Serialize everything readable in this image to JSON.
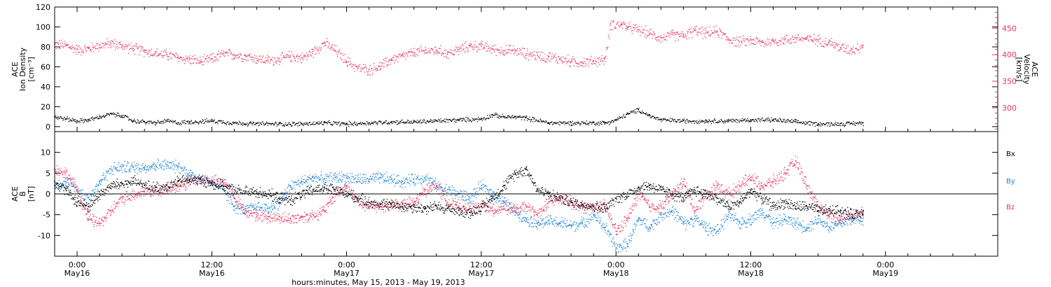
{
  "colors": {
    "black": "#000000",
    "pink": "#e8365d",
    "blue": "#1f86d8"
  },
  "xaxis": {
    "label": "hours:minutes, May 15, 2013 - May 19, 2013",
    "range_hours": [
      -2,
      82
    ],
    "ticks": [
      {
        "hours": 0,
        "time": "0:00",
        "date": "May16"
      },
      {
        "hours": 12,
        "time": "12:00",
        "date": "May16"
      },
      {
        "hours": 24,
        "time": "0:00",
        "date": "May17"
      },
      {
        "hours": 36,
        "time": "12:00",
        "date": "May17"
      },
      {
        "hours": 48,
        "time": "0:00",
        "date": "May18"
      },
      {
        "hours": 60,
        "time": "12:00",
        "date": "May18"
      },
      {
        "hours": 72,
        "time": "0:00",
        "date": "May19"
      }
    ]
  },
  "chart_data": [
    {
      "type": "scatter",
      "panel": "top",
      "ylabel_left": [
        "ACE",
        "Ion Density",
        "[cm⁻³]"
      ],
      "ylabel_right": [
        "ACE",
        "Velocity",
        "[km/s]"
      ],
      "ylim_left": [
        -5,
        120
      ],
      "yticks_left": [
        0,
        20,
        40,
        60,
        80,
        100,
        120
      ],
      "ylim_right": [
        255,
        490
      ],
      "yticks_right": [
        300,
        350,
        400,
        450
      ],
      "series": [
        {
          "axis": "left",
          "color": "#000000",
          "x": [
            -2,
            -1,
            0,
            1,
            2,
            3,
            4,
            5,
            6,
            7,
            8,
            9,
            10,
            12,
            14,
            16,
            18,
            20,
            22,
            24,
            26,
            28,
            30,
            32,
            34,
            36,
            37,
            38,
            39,
            40,
            42,
            44,
            46,
            47,
            48,
            49,
            50,
            51,
            52,
            54,
            56,
            58,
            60,
            62,
            64,
            66,
            68,
            70
          ],
          "y": [
            10,
            8,
            6,
            7,
            10,
            13,
            11,
            6,
            5,
            4,
            6,
            4,
            5,
            6,
            4,
            3,
            3,
            3,
            4,
            3,
            4,
            5,
            5,
            6,
            7,
            8,
            12,
            10,
            10,
            9,
            4,
            4,
            4,
            4,
            7,
            13,
            17,
            11,
            7,
            6,
            6,
            6,
            7,
            7,
            5,
            3,
            3,
            4
          ]
        },
        {
          "axis": "right",
          "color": "#e8365d",
          "x": [
            -2,
            -1,
            0,
            1,
            2,
            3,
            4,
            5,
            6,
            7,
            8,
            9,
            10,
            11,
            12,
            13,
            14,
            15,
            16,
            17,
            18,
            19,
            20,
            21,
            22,
            23,
            24,
            25,
            26,
            27,
            28,
            29,
            30,
            31,
            32,
            33,
            34,
            35,
            36,
            37,
            38,
            39,
            40,
            41,
            42,
            43,
            44,
            45,
            46,
            47,
            47.5,
            48.5,
            49,
            50,
            51,
            52,
            53,
            54,
            55,
            56,
            57,
            58,
            59,
            60,
            61,
            62,
            63,
            64,
            65,
            66,
            67,
            68,
            69,
            70
          ],
          "y": [
            420,
            418,
            410,
            412,
            418,
            422,
            417,
            412,
            408,
            403,
            400,
            395,
            392,
            387,
            393,
            402,
            400,
            398,
            393,
            390,
            392,
            398,
            394,
            406,
            423,
            408,
            388,
            375,
            372,
            378,
            392,
            398,
            404,
            408,
            409,
            403,
            410,
            417,
            416,
            411,
            408,
            408,
            402,
            399,
            396,
            393,
            387,
            386,
            388,
            392,
            458,
            458,
            452,
            447,
            440,
            432,
            438,
            436,
            446,
            441,
            445,
            430,
            424,
            428,
            423,
            426,
            428,
            432,
            430,
            428,
            424,
            413,
            410,
            418
          ]
        }
      ]
    },
    {
      "type": "scatter",
      "panel": "bottom",
      "ylabel_left": [
        "ACE",
        "B",
        "[nT]"
      ],
      "ylim": [
        -15,
        15
      ],
      "yticks": [
        -10,
        -5,
        0,
        5,
        10
      ],
      "zero_line": true,
      "legend_placement": "right",
      "series": [
        {
          "name": "Bx",
          "color": "#000000",
          "x": [
            -2,
            -1,
            0,
            1,
            2,
            3,
            4,
            5,
            6,
            7,
            8,
            9,
            10,
            11,
            12,
            13,
            14,
            15,
            16,
            17,
            18,
            19,
            20,
            21,
            22,
            23,
            24,
            25,
            26,
            27,
            28,
            29,
            30,
            31,
            32,
            33,
            34,
            35,
            36,
            37,
            38,
            39,
            40,
            41,
            42,
            43,
            44,
            45,
            46,
            47,
            48,
            49,
            50,
            51,
            52,
            53,
            54,
            55,
            56,
            57,
            58,
            59,
            60,
            61,
            62,
            63,
            64,
            65,
            66,
            67,
            68,
            69,
            70
          ],
          "y": [
            3,
            1,
            -2,
            -3,
            0,
            2,
            2.5,
            3,
            2,
            1.5,
            2,
            3,
            3.5,
            3.5,
            2.5,
            2,
            1,
            0.5,
            0.5,
            0,
            -1,
            -1.5,
            0,
            1,
            1.5,
            1,
            0,
            -1,
            -2,
            -2.5,
            -2.5,
            -3,
            -3,
            -3.5,
            -3,
            -3.5,
            -4,
            -4.5,
            -3,
            -1,
            2,
            5,
            6,
            1,
            0,
            -1,
            -2,
            -2.5,
            -3,
            -3.5,
            -1,
            0,
            1.5,
            2,
            1,
            0,
            -1,
            1,
            0,
            -1,
            -3,
            -2,
            1,
            -1,
            -3,
            -2,
            -3,
            -3,
            -4,
            -4,
            -4,
            -5,
            -4
          ]
        },
        {
          "name": "By",
          "color": "#1f86d8",
          "x": [
            -2,
            -1,
            0,
            1,
            2,
            3,
            4,
            5,
            6,
            7,
            8,
            9,
            10,
            11,
            12,
            13,
            14,
            15,
            16,
            17,
            18,
            19,
            20,
            21,
            22,
            23,
            24,
            25,
            26,
            27,
            28,
            29,
            30,
            31,
            32,
            33,
            34,
            35,
            36,
            37,
            38,
            39,
            40,
            41,
            42,
            43,
            44,
            45,
            46,
            47,
            48,
            49,
            50,
            51,
            52,
            53,
            54,
            55,
            56,
            57,
            58,
            59,
            60,
            61,
            62,
            63,
            64,
            65,
            66,
            67,
            68,
            69,
            70
          ],
          "y": [
            2,
            3,
            1,
            -1,
            3,
            6,
            6.5,
            6.5,
            6.5,
            7,
            7,
            6.5,
            5,
            3.5,
            3,
            1,
            -3,
            -4,
            -3,
            -3.5,
            -2,
            2,
            3,
            4,
            3.5,
            4,
            4,
            3.5,
            3.5,
            4,
            3.5,
            3,
            3.5,
            4,
            2,
            1,
            0,
            -1,
            2,
            0,
            -2,
            -4,
            -6,
            -7,
            -6.5,
            -7,
            -7.5,
            -7,
            -5,
            -8,
            -13,
            -12,
            -6,
            -8,
            -5,
            -4,
            -7,
            -6,
            -8,
            -9,
            -5,
            -7,
            -6,
            -4,
            -7,
            -6,
            -7,
            -8,
            -6,
            -8,
            -7,
            -6,
            -6
          ]
        },
        {
          "name": "Bz",
          "color": "#e8365d",
          "x": [
            -2,
            -1,
            0,
            1,
            2,
            3,
            4,
            5,
            6,
            7,
            8,
            9,
            10,
            11,
            12,
            13,
            14,
            15,
            16,
            17,
            18,
            19,
            20,
            21,
            22,
            23,
            24,
            25,
            26,
            27,
            28,
            29,
            30,
            31,
            32,
            33,
            34,
            35,
            36,
            37,
            38,
            39,
            40,
            41,
            42,
            43,
            44,
            45,
            46,
            47,
            48,
            49,
            50,
            51,
            52,
            53,
            54,
            55,
            56,
            57,
            58,
            59,
            60,
            61,
            62,
            63,
            64,
            65,
            66,
            67,
            68,
            69,
            70
          ],
          "y": [
            6,
            5,
            1,
            -6,
            -7,
            -4,
            -1,
            0,
            0.5,
            1,
            1,
            2,
            3,
            3.5,
            3,
            3,
            -1,
            -4,
            -5,
            -5.5,
            -5.5,
            -6,
            -5.5,
            -5,
            -4,
            0,
            2,
            -2,
            -3,
            -3,
            -2.5,
            -2.5,
            -2,
            1,
            2,
            -2,
            -3,
            -3.5,
            -3,
            -4,
            -3,
            -4,
            -3,
            -5,
            -2,
            -1,
            -2,
            -3,
            -3,
            -3,
            -9,
            -6,
            0,
            -3,
            -3,
            0,
            3,
            -4,
            0,
            2,
            0,
            2,
            4,
            2,
            3,
            5,
            8,
            2,
            -3,
            -5,
            -6,
            -5,
            -4
          ]
        }
      ]
    }
  ]
}
